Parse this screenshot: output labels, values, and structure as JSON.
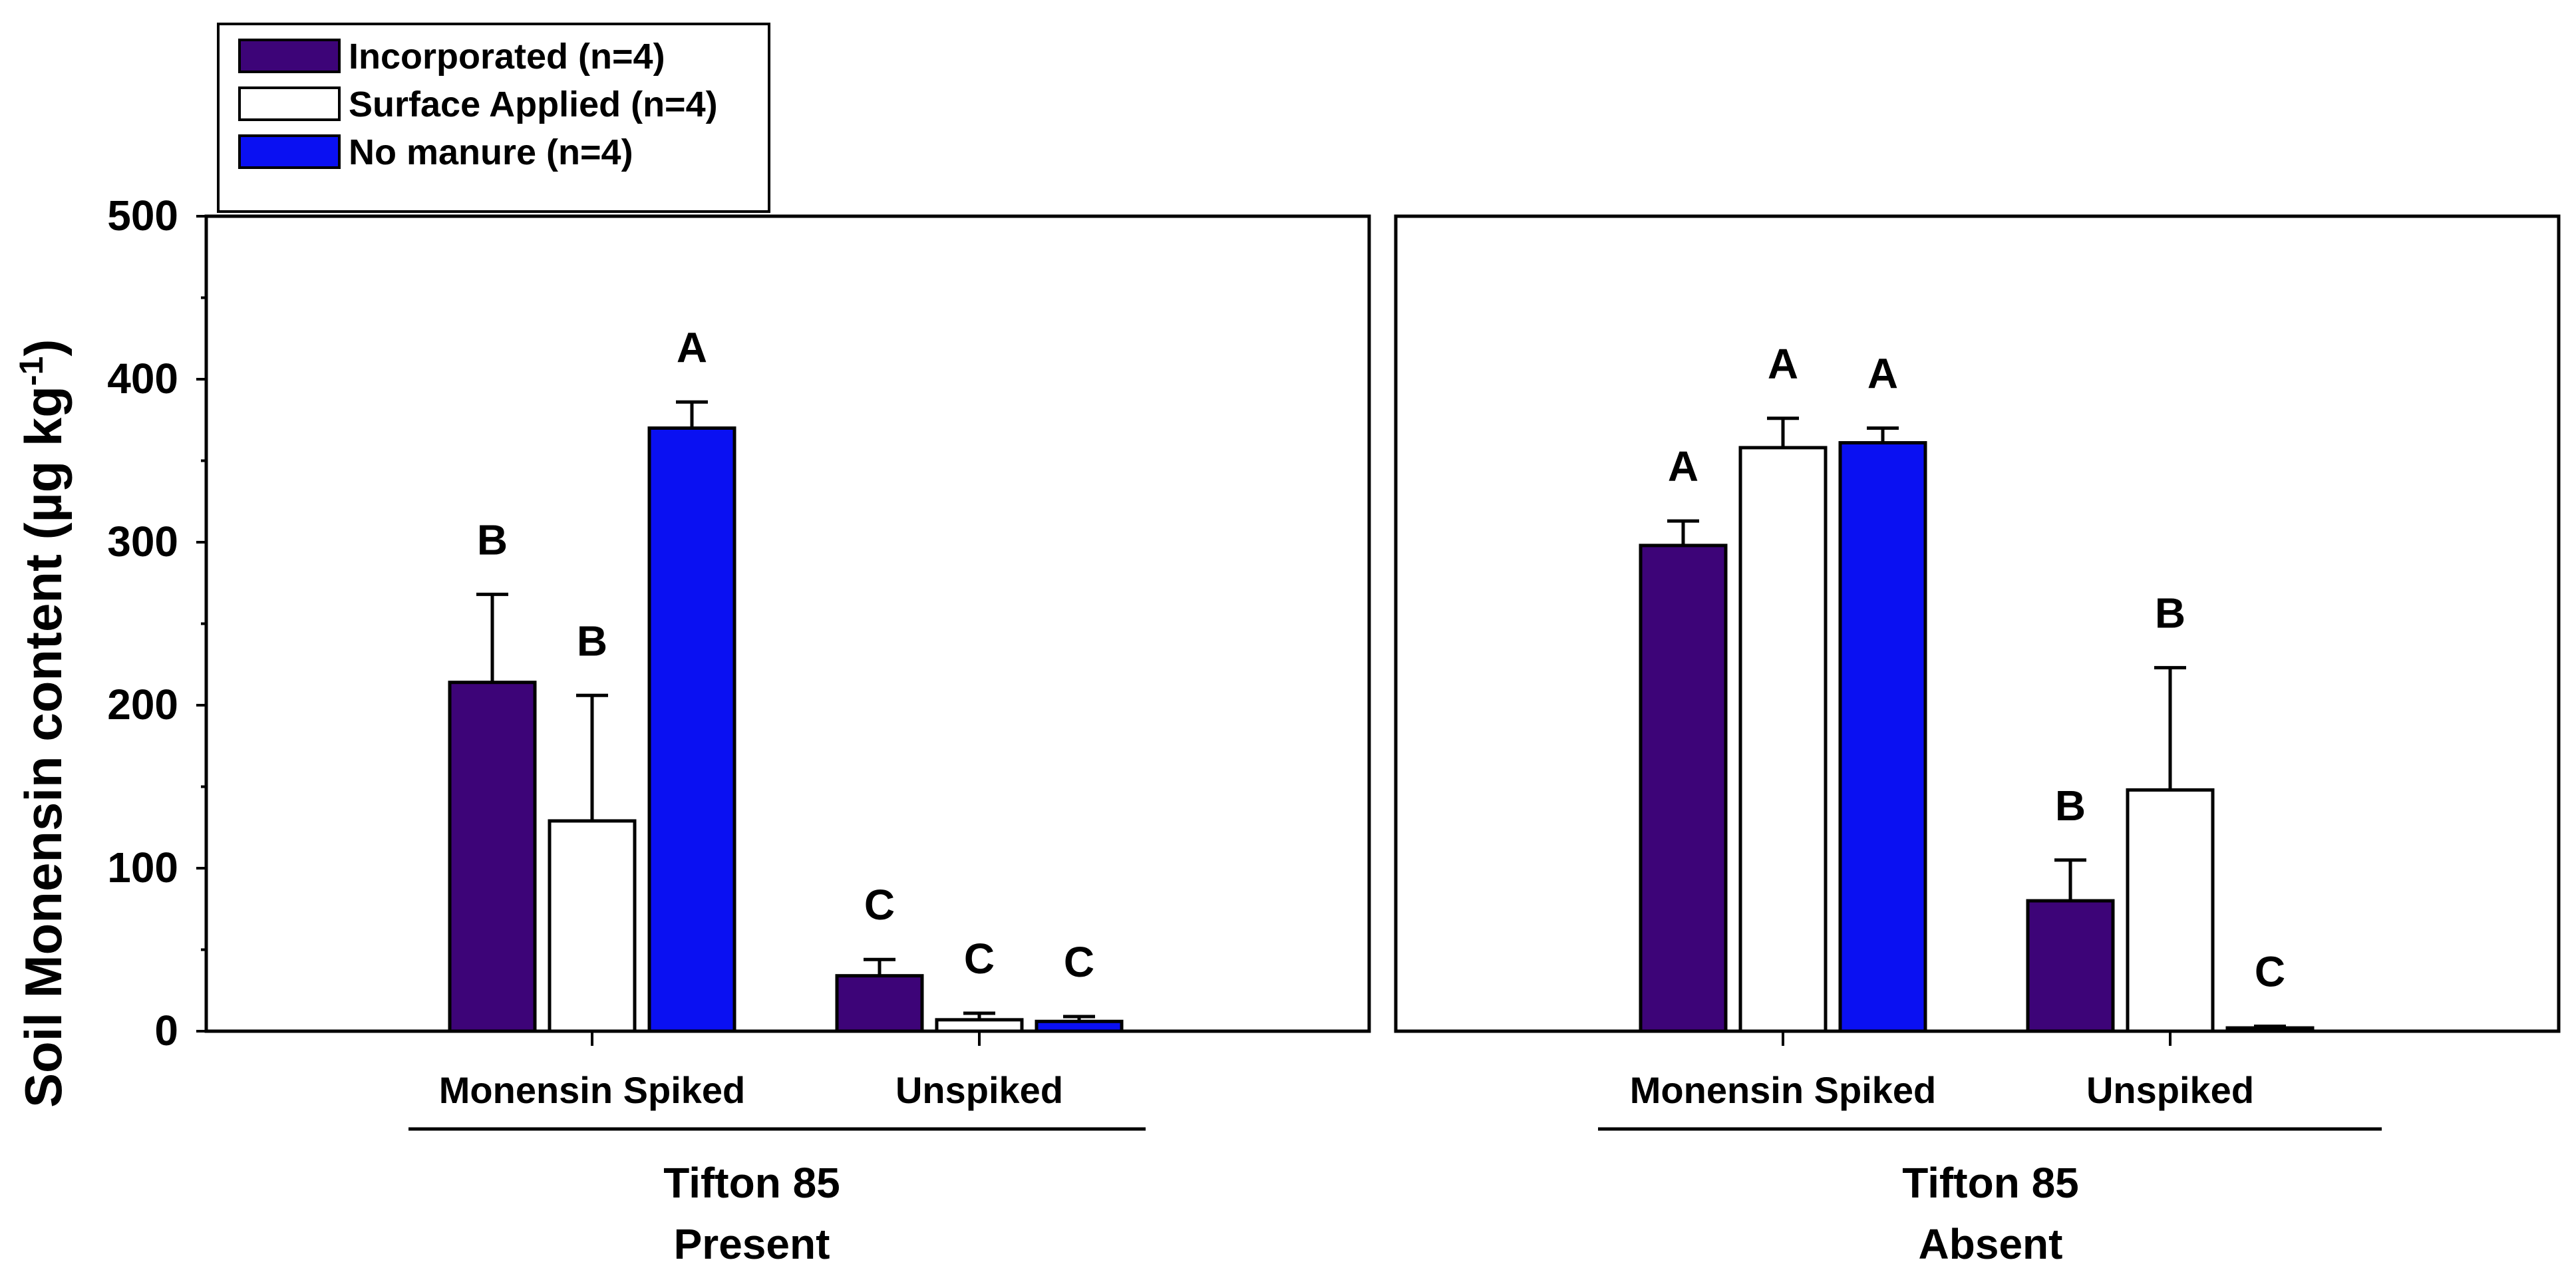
{
  "chart_data": {
    "type": "bar",
    "ylabel": "Soil Monensin content (µg kg",
    "ylabel_sup": "-1",
    "ylabel_close": ")",
    "ylim": [
      0,
      500
    ],
    "yticks": [
      0,
      100,
      200,
      300,
      400,
      500
    ],
    "yticks_minor": [
      50,
      150,
      250,
      350,
      450
    ],
    "series_colors": [
      "#3d0478",
      "#ffffff",
      "#0a10f2"
    ],
    "legend": {
      "placement": "top-left",
      "entries": [
        {
          "label": "Incorporated (n=4)",
          "color": "#3d0478"
        },
        {
          "label": "Surface Applied (n=4)",
          "color": "#ffffff"
        },
        {
          "label": "No manure (n=4)",
          "color": "#0a10f2"
        }
      ]
    },
    "panels": [
      {
        "group_label": "Tifton 85",
        "group_sublabel": "Present",
        "categories": [
          "Monensin Spiked",
          "Unspiked"
        ],
        "bars": [
          [
            {
              "series": "Incorporated (n=4)",
              "value": 214,
              "error": 54,
              "letter": "B"
            },
            {
              "series": "Surface Applied (n=4)",
              "value": 129,
              "error": 77,
              "letter": "B"
            },
            {
              "series": "No manure (n=4)",
              "value": 370,
              "error": 16,
              "letter": "A"
            }
          ],
          [
            {
              "series": "Incorporated (n=4)",
              "value": 34,
              "error": 10,
              "letter": "C"
            },
            {
              "series": "Surface Applied (n=4)",
              "value": 7,
              "error": 4,
              "letter": "C"
            },
            {
              "series": "No manure (n=4)",
              "value": 6,
              "error": 3,
              "letter": "C"
            }
          ]
        ]
      },
      {
        "group_label": "Tifton 85",
        "group_sublabel": "Absent",
        "categories": [
          "Monensin Spiked",
          "Unspiked"
        ],
        "bars": [
          [
            {
              "series": "Incorporated (n=4)",
              "value": 298,
              "error": 15,
              "letter": "A"
            },
            {
              "series": "Surface Applied (n=4)",
              "value": 358,
              "error": 18,
              "letter": "A"
            },
            {
              "series": "No manure (n=4)",
              "value": 361,
              "error": 9,
              "letter": "A"
            }
          ],
          [
            {
              "series": "Incorporated (n=4)",
              "value": 80,
              "error": 25,
              "letter": "B"
            },
            {
              "series": "Surface Applied (n=4)",
              "value": 148,
              "error": 75,
              "letter": "B"
            },
            {
              "series": "No manure (n=4)",
              "value": 2,
              "error": 1,
              "letter": "C"
            }
          ]
        ]
      }
    ]
  }
}
